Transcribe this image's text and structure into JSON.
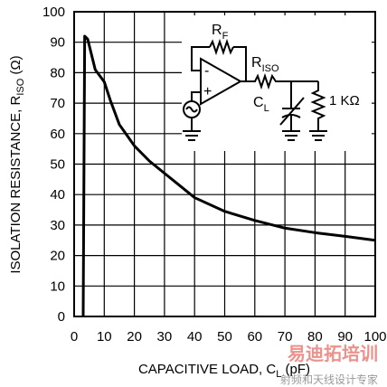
{
  "chart_data": {
    "type": "line",
    "x_label": "CAPACITIVE LOAD, C",
    "x_label_sub": "L",
    "x_label_suffix": " (pF)",
    "y_label": "ISOLATION RESISTANCE, R",
    "y_label_sub": "ISO",
    "y_label_suffix": " (Ω)",
    "series": [
      {
        "color": "#000000",
        "x": [
          3,
          3.5,
          4.5,
          7,
          10,
          12,
          15,
          20,
          25,
          30,
          35,
          40,
          50,
          60,
          70,
          80,
          90,
          100
        ],
        "values": [
          0,
          92,
          91,
          81,
          77,
          71,
          63,
          56,
          51,
          47,
          43,
          39,
          34.5,
          31.5,
          29,
          27.5,
          26.3,
          25
        ]
      }
    ],
    "xlim": [
      0,
      100
    ],
    "ylim": [
      0,
      100
    ],
    "xticks": [
      0,
      10,
      20,
      30,
      40,
      50,
      60,
      70,
      80,
      90,
      100
    ],
    "yticks": [
      0,
      10,
      20,
      30,
      40,
      50,
      60,
      70,
      80,
      90,
      100
    ],
    "grid": true,
    "inset_labels": [
      {
        "text": "R",
        "sub": "F"
      },
      {
        "text": "R",
        "sub": "ISO"
      },
      {
        "text": "C",
        "sub": "L"
      },
      {
        "text": "1 KΩ"
      }
    ],
    "watermark": [
      "易迪拓培训",
      "射频和天线设计专家"
    ]
  }
}
